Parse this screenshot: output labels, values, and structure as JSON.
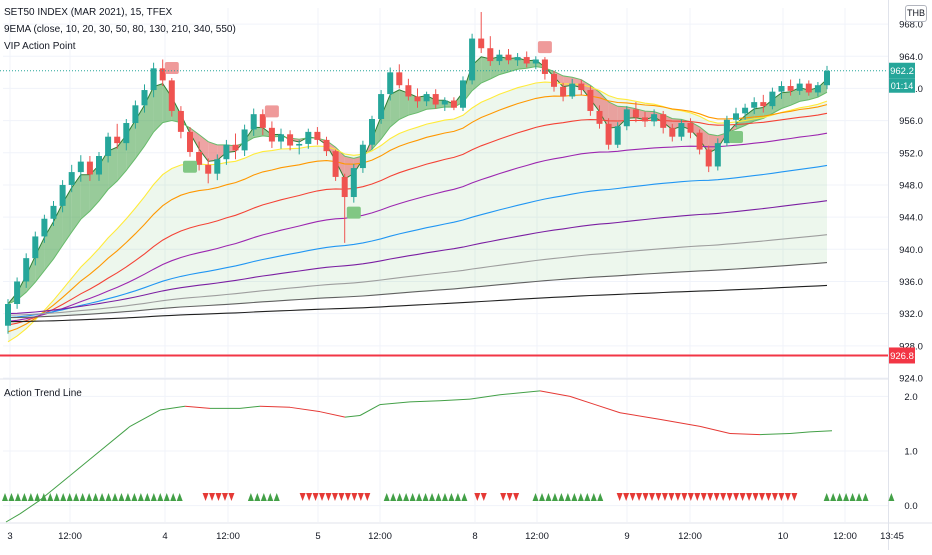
{
  "header": {
    "symbol_line": "SET50 INDEX (MAR 2021), 15, TFEX",
    "indicator_line": "9EMA (close, 10, 20, 30, 50, 80, 130, 210, 340, 550)",
    "vip_line": "VIP Action Point",
    "currency": "THB"
  },
  "sub_panel": {
    "title": "Action Trend Line"
  },
  "colors": {
    "up": "#26a69a",
    "down": "#ef5350",
    "cloud_up": "#4caf50",
    "cloud_down": "#e57373",
    "ema": [
      "#ffeb3b",
      "#ff9800",
      "#f44336",
      "#9c27b0",
      "#2196f3",
      "#7b1fa2",
      "#9e9e9e",
      "#616161",
      "#212121"
    ],
    "trend_up": "#43a047",
    "trend_down": "#e53935",
    "level_line": "#f23645"
  },
  "chart_data": [
    {
      "type": "line",
      "ylim": [
        924,
        970
      ],
      "yticks": [
        "968.0",
        "964.0",
        "960.0",
        "956.0",
        "952.0",
        "948.0",
        "944.0",
        "940.0",
        "936.0",
        "932.0",
        "928.0",
        "924.0"
      ],
      "xlabels": [
        "3",
        "12:00",
        "4",
        "12:00",
        "5",
        "12:00",
        "8",
        "12:00",
        "9",
        "12:00",
        "10",
        "12:00",
        "13:45"
      ],
      "last_price": "962.2",
      "countdown": "01:14",
      "level_price": "926.8",
      "level_value": 926.8,
      "ohlc": [
        [
          930.5,
          933.8,
          929.5,
          933.2
        ],
        [
          933.2,
          936.5,
          932.6,
          936.0
        ],
        [
          936.0,
          939.5,
          935.2,
          938.9
        ],
        [
          938.9,
          942.2,
          938.0,
          941.6
        ],
        [
          941.6,
          944.3,
          940.8,
          943.8
        ],
        [
          943.8,
          946.0,
          942.9,
          945.4
        ],
        [
          945.4,
          948.6,
          944.6,
          948.0
        ],
        [
          948.0,
          950.5,
          947.1,
          949.6
        ],
        [
          949.6,
          951.7,
          948.4,
          950.9
        ],
        [
          950.9,
          951.6,
          948.5,
          949.3
        ],
        [
          949.3,
          952.1,
          948.5,
          951.6
        ],
        [
          951.6,
          954.5,
          950.8,
          954.0
        ],
        [
          954.0,
          955.6,
          952.5,
          953.2
        ],
        [
          953.2,
          956.2,
          952.3,
          955.7
        ],
        [
          955.7,
          958.5,
          955.0,
          957.9
        ],
        [
          957.9,
          960.5,
          957.0,
          959.8
        ],
        [
          959.8,
          963.2,
          958.9,
          962.5
        ],
        [
          962.5,
          963.6,
          960.3,
          961.0
        ],
        [
          961.0,
          961.3,
          956.5,
          957.2
        ],
        [
          957.2,
          957.8,
          953.8,
          954.6
        ],
        [
          954.6,
          955.2,
          951.5,
          952.1
        ],
        [
          952.1,
          953.4,
          949.8,
          950.5
        ],
        [
          950.5,
          951.3,
          948.2,
          949.4
        ],
        [
          949.4,
          951.8,
          948.6,
          951.2
        ],
        [
          951.2,
          953.6,
          950.5,
          953.0
        ],
        [
          953.0,
          954.4,
          951.2,
          952.3
        ],
        [
          952.3,
          955.5,
          951.6,
          954.9
        ],
        [
          954.9,
          957.5,
          954.1,
          956.8
        ],
        [
          956.8,
          957.4,
          954.2,
          955.1
        ],
        [
          955.1,
          955.9,
          952.6,
          953.4
        ],
        [
          953.4,
          955.0,
          952.5,
          954.3
        ],
        [
          954.3,
          954.8,
          952.3,
          952.9
        ],
        [
          952.9,
          953.6,
          951.8,
          953.1
        ],
        [
          953.1,
          955.0,
          952.5,
          954.6
        ],
        [
          954.6,
          955.2,
          953.0,
          953.6
        ],
        [
          953.6,
          954.0,
          951.6,
          952.2
        ],
        [
          952.2,
          952.4,
          948.5,
          949.0
        ],
        [
          949.0,
          949.4,
          940.8,
          946.5
        ],
        [
          946.5,
          950.6,
          945.8,
          950.1
        ],
        [
          950.1,
          953.5,
          949.5,
          953.0
        ],
        [
          953.0,
          956.6,
          952.4,
          956.2
        ],
        [
          956.2,
          959.8,
          955.6,
          959.3
        ],
        [
          959.3,
          962.6,
          958.5,
          962.0
        ],
        [
          962.0,
          963.0,
          960.0,
          960.4
        ],
        [
          960.4,
          961.2,
          958.5,
          959.0
        ],
        [
          959.0,
          960.0,
          957.6,
          958.4
        ],
        [
          958.4,
          959.6,
          957.8,
          959.3
        ],
        [
          959.3,
          959.9,
          957.5,
          958.0
        ],
        [
          958.0,
          958.9,
          957.2,
          958.5
        ],
        [
          958.5,
          958.9,
          957.3,
          957.6
        ],
        [
          957.6,
          961.5,
          957.2,
          961.0
        ],
        [
          961.0,
          966.8,
          960.5,
          966.2
        ],
        [
          966.2,
          969.5,
          964.4,
          965.0
        ],
        [
          965.0,
          966.5,
          962.8,
          963.4
        ],
        [
          963.4,
          964.8,
          962.9,
          964.2
        ],
        [
          964.2,
          964.9,
          963.0,
          963.5
        ],
        [
          963.5,
          964.4,
          962.8,
          963.9
        ],
        [
          963.9,
          964.6,
          962.6,
          963.1
        ],
        [
          963.1,
          964.0,
          962.4,
          963.6
        ],
        [
          963.6,
          963.9,
          961.1,
          961.8
        ],
        [
          961.8,
          962.2,
          959.6,
          960.2
        ],
        [
          960.2,
          960.7,
          958.4,
          959.0
        ],
        [
          959.0,
          961.2,
          958.7,
          960.6
        ],
        [
          960.6,
          961.1,
          959.2,
          959.8
        ],
        [
          959.8,
          960.3,
          956.6,
          957.2
        ],
        [
          957.2,
          957.9,
          955.0,
          955.6
        ],
        [
          955.6,
          956.3,
          952.4,
          953.0
        ],
        [
          953.0,
          955.8,
          952.6,
          955.3
        ],
        [
          955.3,
          957.8,
          954.8,
          957.4
        ],
        [
          957.4,
          958.3,
          955.8,
          956.4
        ],
        [
          956.4,
          957.1,
          955.2,
          955.9
        ],
        [
          955.9,
          957.4,
          955.3,
          956.8
        ],
        [
          956.8,
          957.2,
          954.4,
          955.1
        ],
        [
          955.1,
          955.6,
          953.4,
          954.0
        ],
        [
          954.0,
          956.1,
          953.5,
          955.7
        ],
        [
          955.7,
          956.3,
          953.8,
          954.5
        ],
        [
          954.5,
          954.9,
          951.8,
          952.4
        ],
        [
          952.4,
          952.9,
          949.6,
          950.3
        ],
        [
          950.3,
          953.8,
          949.8,
          953.2
        ],
        [
          953.2,
          956.6,
          952.8,
          956.1
        ],
        [
          956.1,
          957.6,
          955.2,
          956.9
        ],
        [
          956.9,
          958.1,
          956.1,
          957.6
        ],
        [
          957.6,
          958.9,
          956.8,
          958.3
        ],
        [
          958.3,
          959.2,
          957.0,
          957.8
        ],
        [
          957.8,
          960.1,
          957.4,
          959.6
        ],
        [
          959.6,
          960.9,
          958.7,
          960.3
        ],
        [
          960.3,
          961.1,
          959.1,
          959.7
        ],
        [
          959.7,
          961.2,
          959.2,
          960.6
        ],
        [
          960.6,
          961.0,
          959.1,
          959.5
        ],
        [
          959.5,
          960.8,
          959.0,
          960.4
        ],
        [
          960.4,
          962.8,
          959.9,
          962.2
        ]
      ]
    },
    {
      "type": "line",
      "title": "Action Trend Line",
      "ylim": [
        -0.3,
        2.3
      ],
      "yticks": [
        "2.0",
        "1.0",
        "0.0"
      ],
      "signals": "uuuuuuuuuuuuuuuuuuuuuuuuuuuu...ddddd..uuuuu...ddddddddddd..uuuuuuuuuuuuu.dd..ddd..uuuuuuuuuuu..dddddddddddddddddddddddddddd....uuuuuuu...u"
    }
  ]
}
